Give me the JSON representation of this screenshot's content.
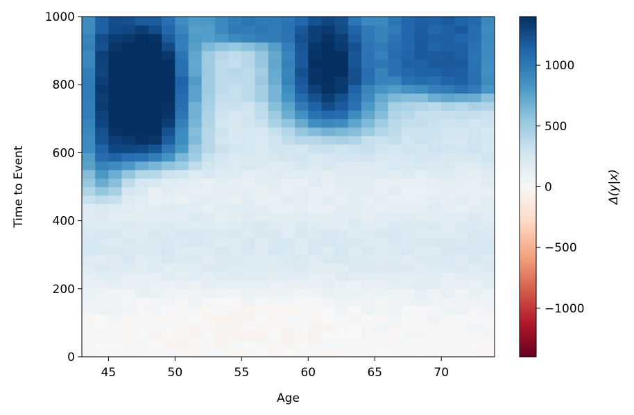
{
  "chart_data": {
    "type": "heatmap",
    "title": "",
    "xlabel": "Age",
    "ylabel": "Time to Event",
    "colorbar_label": "Δ(y|x)",
    "colormap": "RdBu",
    "colormap_stops": [
      "#67001f",
      "#b2182b",
      "#d6604d",
      "#f4a582",
      "#fddbc7",
      "#f7f7f7",
      "#d1e5f0",
      "#92c5de",
      "#4393c3",
      "#2166ac",
      "#053061"
    ],
    "xlim": [
      43,
      74
    ],
    "ylim": [
      0,
      1000
    ],
    "clim": [
      -1400,
      1400
    ],
    "x_ticks": [
      45,
      50,
      55,
      60,
      65,
      70
    ],
    "x_tick_labels": [
      "45",
      "50",
      "55",
      "60",
      "65",
      "70"
    ],
    "y_ticks": [
      0,
      200,
      400,
      600,
      800,
      1000
    ],
    "y_tick_labels": [
      "0",
      "200",
      "400",
      "600",
      "800",
      "1000"
    ],
    "colorbar_ticks": [
      -1000,
      -500,
      0,
      500,
      1000
    ],
    "colorbar_tick_labels": [
      "−1000",
      "−500",
      "0",
      "500",
      "1000"
    ],
    "x_bin_width": 1,
    "y_bin_height": 25,
    "grid": false,
    "legend": "none",
    "peaks": [
      {
        "age": 48,
        "time": 740,
        "value": 1350
      },
      {
        "age": 62,
        "time": 820,
        "value": 1150
      },
      {
        "age": 45,
        "time": 870,
        "value": 950
      }
    ]
  }
}
